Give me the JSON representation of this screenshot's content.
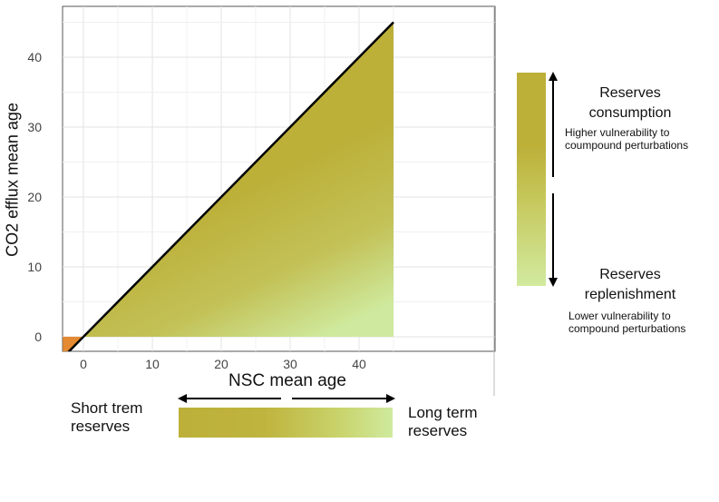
{
  "chart_data": {
    "type": "area",
    "xlabel": "NSC mean age",
    "ylabel": "CO2 efflux mean age",
    "xlim": [
      -3,
      45
    ],
    "ylim": [
      -2,
      45
    ],
    "x_ticks": [
      0,
      10,
      20,
      30,
      40
    ],
    "y_ticks": [
      0,
      10,
      20,
      30,
      40
    ],
    "grid": true,
    "line": {
      "x": [
        -3,
        45
      ],
      "y": [
        -3,
        45
      ],
      "color": "#000000"
    },
    "filled_region": {
      "description_color_start": "#bcb039",
      "description_color_end": "#cfea9e"
    },
    "negative_region_color": "#e38a32"
  },
  "legend_horizontal": {
    "left_label": "Short trem reserves",
    "right_label": "Long term reserves",
    "color_start": "#bcb039",
    "color_end": "#cfea9e"
  },
  "legend_vertical": {
    "top_title": "Reserves consumption",
    "top_subtitle": "Higher vulnerability to coumpound perturbations",
    "bottom_title": "Reserves replenishment",
    "bottom_subtitle": "Lower vulnerability to compound perturbations"
  }
}
